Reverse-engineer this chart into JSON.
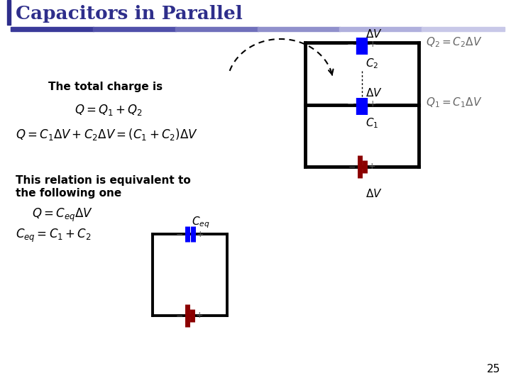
{
  "title": "Capacitors in Parallel",
  "title_color": "#2e2e8b",
  "bg_color": "#ffffff",
  "slide_number": "25",
  "text_total_charge": "The total charge is",
  "text_relation_1": "This relation is equivalent to",
  "text_relation_2": "the following one",
  "header_gradient_colors": [
    "#3a3a99",
    "#8080cc",
    "#b0b0dd"
  ],
  "header_left_bar": "#2e2e8b"
}
